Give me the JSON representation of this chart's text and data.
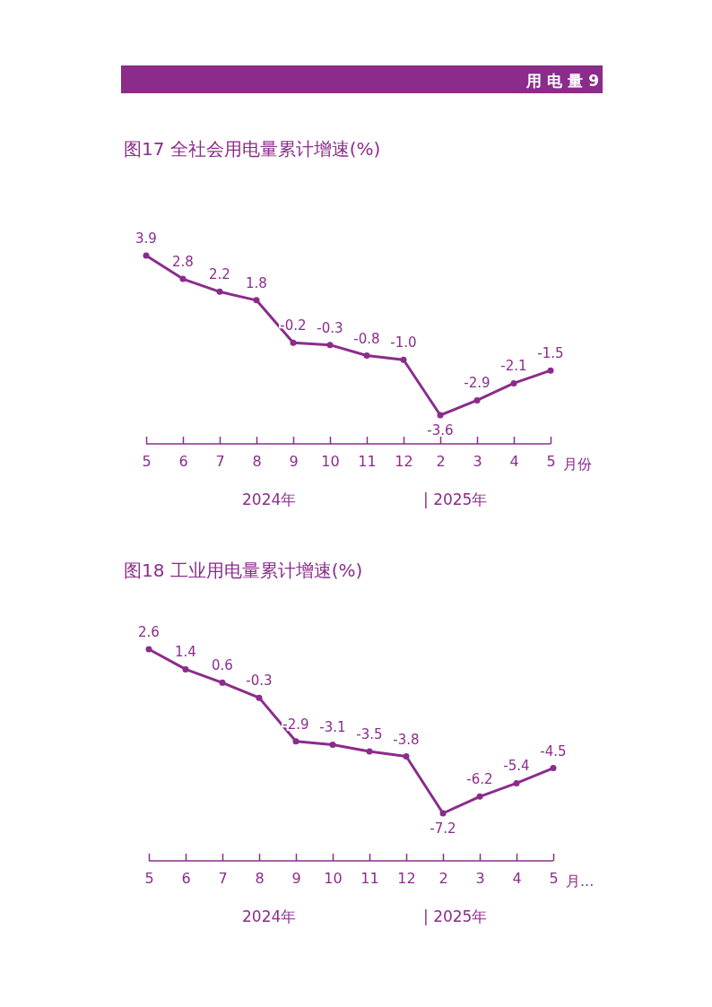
{
  "chart_data": [
    {
      "type": "line",
      "title": "图17  全社会用电量累计增速(%)",
      "xlabel": "月份",
      "categories": [
        "5",
        "6",
        "7",
        "8",
        "9",
        "10",
        "11",
        "12",
        "2",
        "3",
        "4",
        "5"
      ],
      "series": [
        {
          "color": "#8b2c8b",
          "values": [
            3.9,
            2.8,
            2.2,
            1.8,
            -0.2,
            -0.3,
            -0.8,
            -1.0,
            -3.6,
            -2.9,
            -2.1,
            -1.5
          ],
          "value_labels": [
            "3.9",
            "2.8",
            "2.2",
            "1.8",
            "-0.2",
            "-0.3",
            "-0.8",
            "-1.0",
            "-3.6",
            "-2.9",
            "-2.1",
            "-1.5"
          ]
        }
      ],
      "marker": "circle",
      "line_style": "solid",
      "annotations": [
        "用 电 量 9",
        "2024年",
        "| 2025年"
      ]
    },
    {
      "type": "line",
      "title": "图18  工业用电量累计增速(%)",
      "xlabel": "月...",
      "categories": [
        "5",
        "6",
        "7",
        "8",
        "9",
        "10",
        "11",
        "12",
        "2",
        "3",
        "4",
        "5"
      ],
      "series": [
        {
          "color": "#8b2c8b",
          "values": [
            2.6,
            1.4,
            0.6,
            -0.3,
            -2.9,
            -3.1,
            -3.5,
            -3.8,
            -7.2,
            -6.2,
            -5.4,
            -4.5
          ],
          "value_labels": [
            "2.6",
            "1.4",
            "0.6",
            "-0.3",
            "-2.9",
            "-3.1",
            "-3.5",
            "-3.8",
            "-7.2",
            "-6.2",
            "-5.4",
            "-4.5"
          ]
        }
      ],
      "marker": "circle",
      "line_style": "solid",
      "annotations": [
        "2024年",
        "| 2025年"
      ]
    }
  ]
}
